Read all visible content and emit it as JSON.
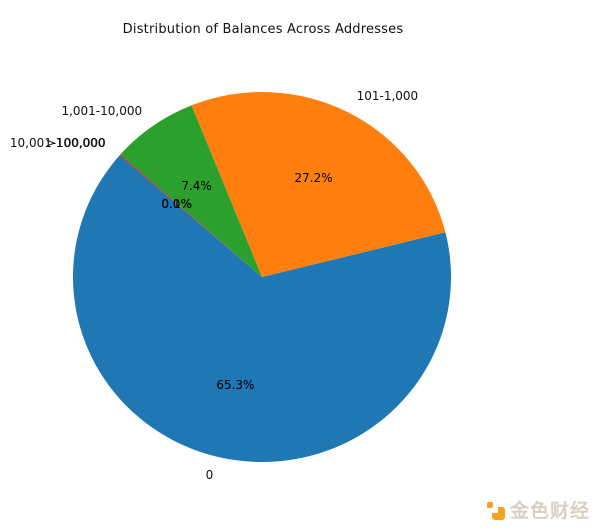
{
  "title": "Distribution of Balances Across Addresses",
  "watermark": {
    "text": "金色财经",
    "icon": "jinse-logo-icon",
    "icon_color": "#f7a21c",
    "text_color": "#d9d0c3"
  },
  "chart_data": {
    "type": "pie",
    "title": "Distribution of Balances Across Addresses",
    "direction": "counterclockwise",
    "start_angle_deg": 138.9,
    "label_distance": 1.1,
    "pct_distance": 0.6,
    "legend_position": "none",
    "slices": [
      {
        "label": "0",
        "pct": 65.3,
        "color": "#1f77b4"
      },
      {
        "label": "101-1,000",
        "pct": 27.2,
        "color": "#ff7f0e"
      },
      {
        "label": "1,001-10,000",
        "pct": 7.4,
        "color": "#2ca02c"
      },
      {
        "label": "10,001-100,000",
        "pct": 0.1,
        "color": "#d62728"
      },
      {
        "label": ">100,000",
        "pct": 0.0,
        "color": "#9467bd"
      }
    ],
    "pct_label_format": "{:.1f}%",
    "pct_labels": [
      "65.3%",
      "27.2%",
      "7.4%",
      "0.1%",
      "0.0%"
    ],
    "notes": "labels 10,001-100,000 / >100,000 and pct labels 0.1% / 0.0% overlap visually"
  }
}
